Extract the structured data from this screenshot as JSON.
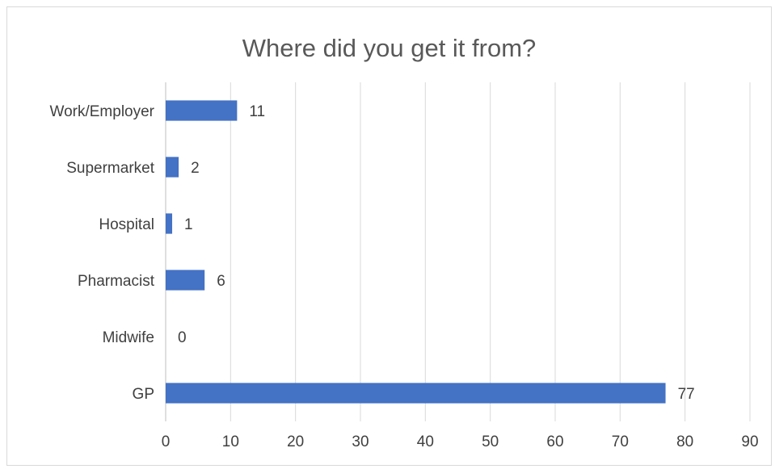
{
  "chart_data": {
    "type": "bar",
    "orientation": "horizontal",
    "title": "Where did you get it from?",
    "categories": [
      "GP",
      "Midwife",
      "Pharmacist",
      "Hospital",
      "Supermarket",
      "Work/Employer"
    ],
    "values": [
      77,
      0,
      6,
      1,
      2,
      11
    ],
    "xlim": [
      0,
      90
    ],
    "x_ticks": [
      0,
      10,
      20,
      30,
      40,
      50,
      60,
      70,
      80,
      90
    ],
    "xlabel": "",
    "ylabel": "",
    "grid": "vertical",
    "legend": "none",
    "data_labels": true,
    "colors": {
      "bar": "#4472C4",
      "grid": "#d9d9d9",
      "text": "#404040",
      "title": "#595959"
    }
  }
}
